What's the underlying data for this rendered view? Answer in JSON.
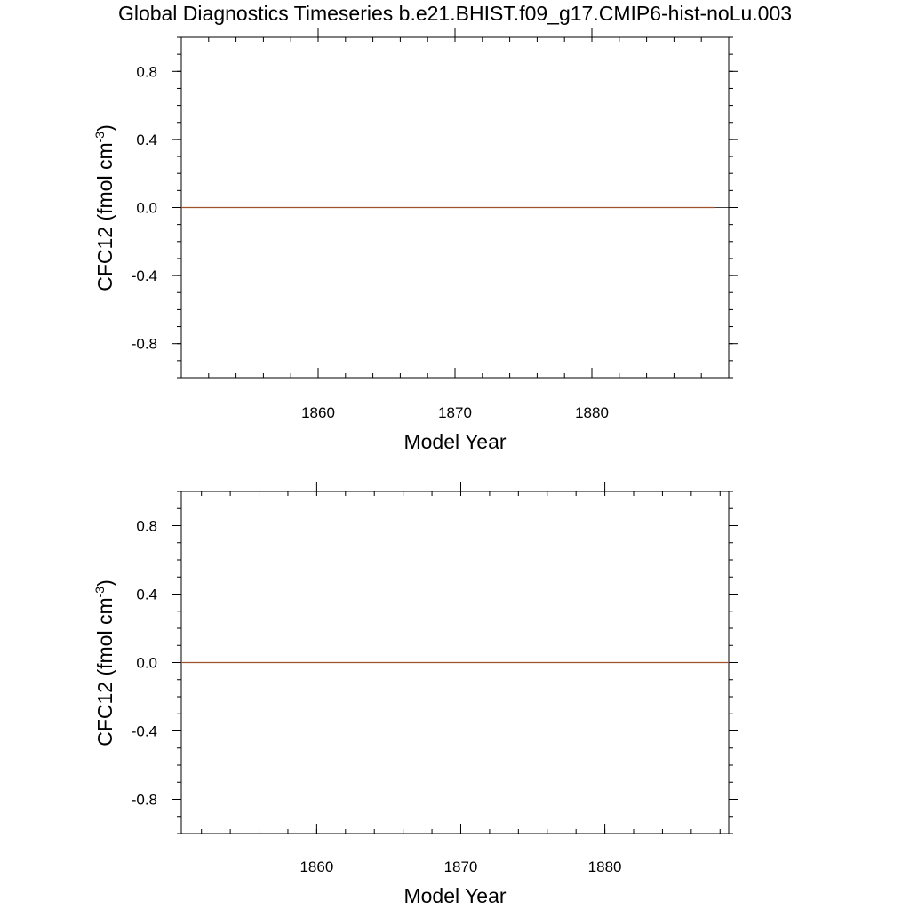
{
  "title": "Global Diagnostics Timeseries b.e21.BHIST.f09_g17.CMIP6-hist-noLu.003",
  "colors": {
    "series": "#a0522d",
    "axes": "#000000",
    "zero_line": "#000000"
  },
  "chart_data": [
    {
      "type": "line",
      "xlabel": "Model Year",
      "ylabel": "CFC12 (fmol cm",
      "ylabel_sup": "-3",
      "ylabel_close": ")",
      "xlim": [
        1850,
        1890
      ],
      "ylim": [
        -1.0,
        1.0
      ],
      "x_ticks": [
        1860,
        1870,
        1880
      ],
      "x_tick_labels": [
        "1860",
        "1870",
        "1880"
      ],
      "y_ticks": [
        0.8,
        0.4,
        0.0,
        -0.4,
        -0.8
      ],
      "y_tick_labels": [
        "0.8",
        "0.4",
        "0.0",
        "-0.4",
        "-0.8"
      ],
      "series": [
        {
          "x": [
            1850,
            1889
          ],
          "y": [
            0.0,
            0.0
          ]
        }
      ]
    },
    {
      "type": "line",
      "xlabel": "Model Year",
      "ylabel": "CFC12 (fmol cm",
      "ylabel_sup": "-3",
      "ylabel_close": ")",
      "xlim": [
        1850.6,
        1888.6
      ],
      "ylim": [
        -1.0,
        1.0
      ],
      "x_ticks": [
        1860,
        1870,
        1880
      ],
      "x_tick_labels": [
        "1860",
        "1870",
        "1880"
      ],
      "y_ticks": [
        0.8,
        0.4,
        0.0,
        -0.4,
        -0.8
      ],
      "y_tick_labels": [
        "0.8",
        "0.4",
        "0.0",
        "-0.4",
        "-0.8"
      ],
      "series": [
        {
          "x": [
            1850.6,
            1888.6
          ],
          "y": [
            0.0,
            0.0
          ]
        }
      ]
    }
  ]
}
